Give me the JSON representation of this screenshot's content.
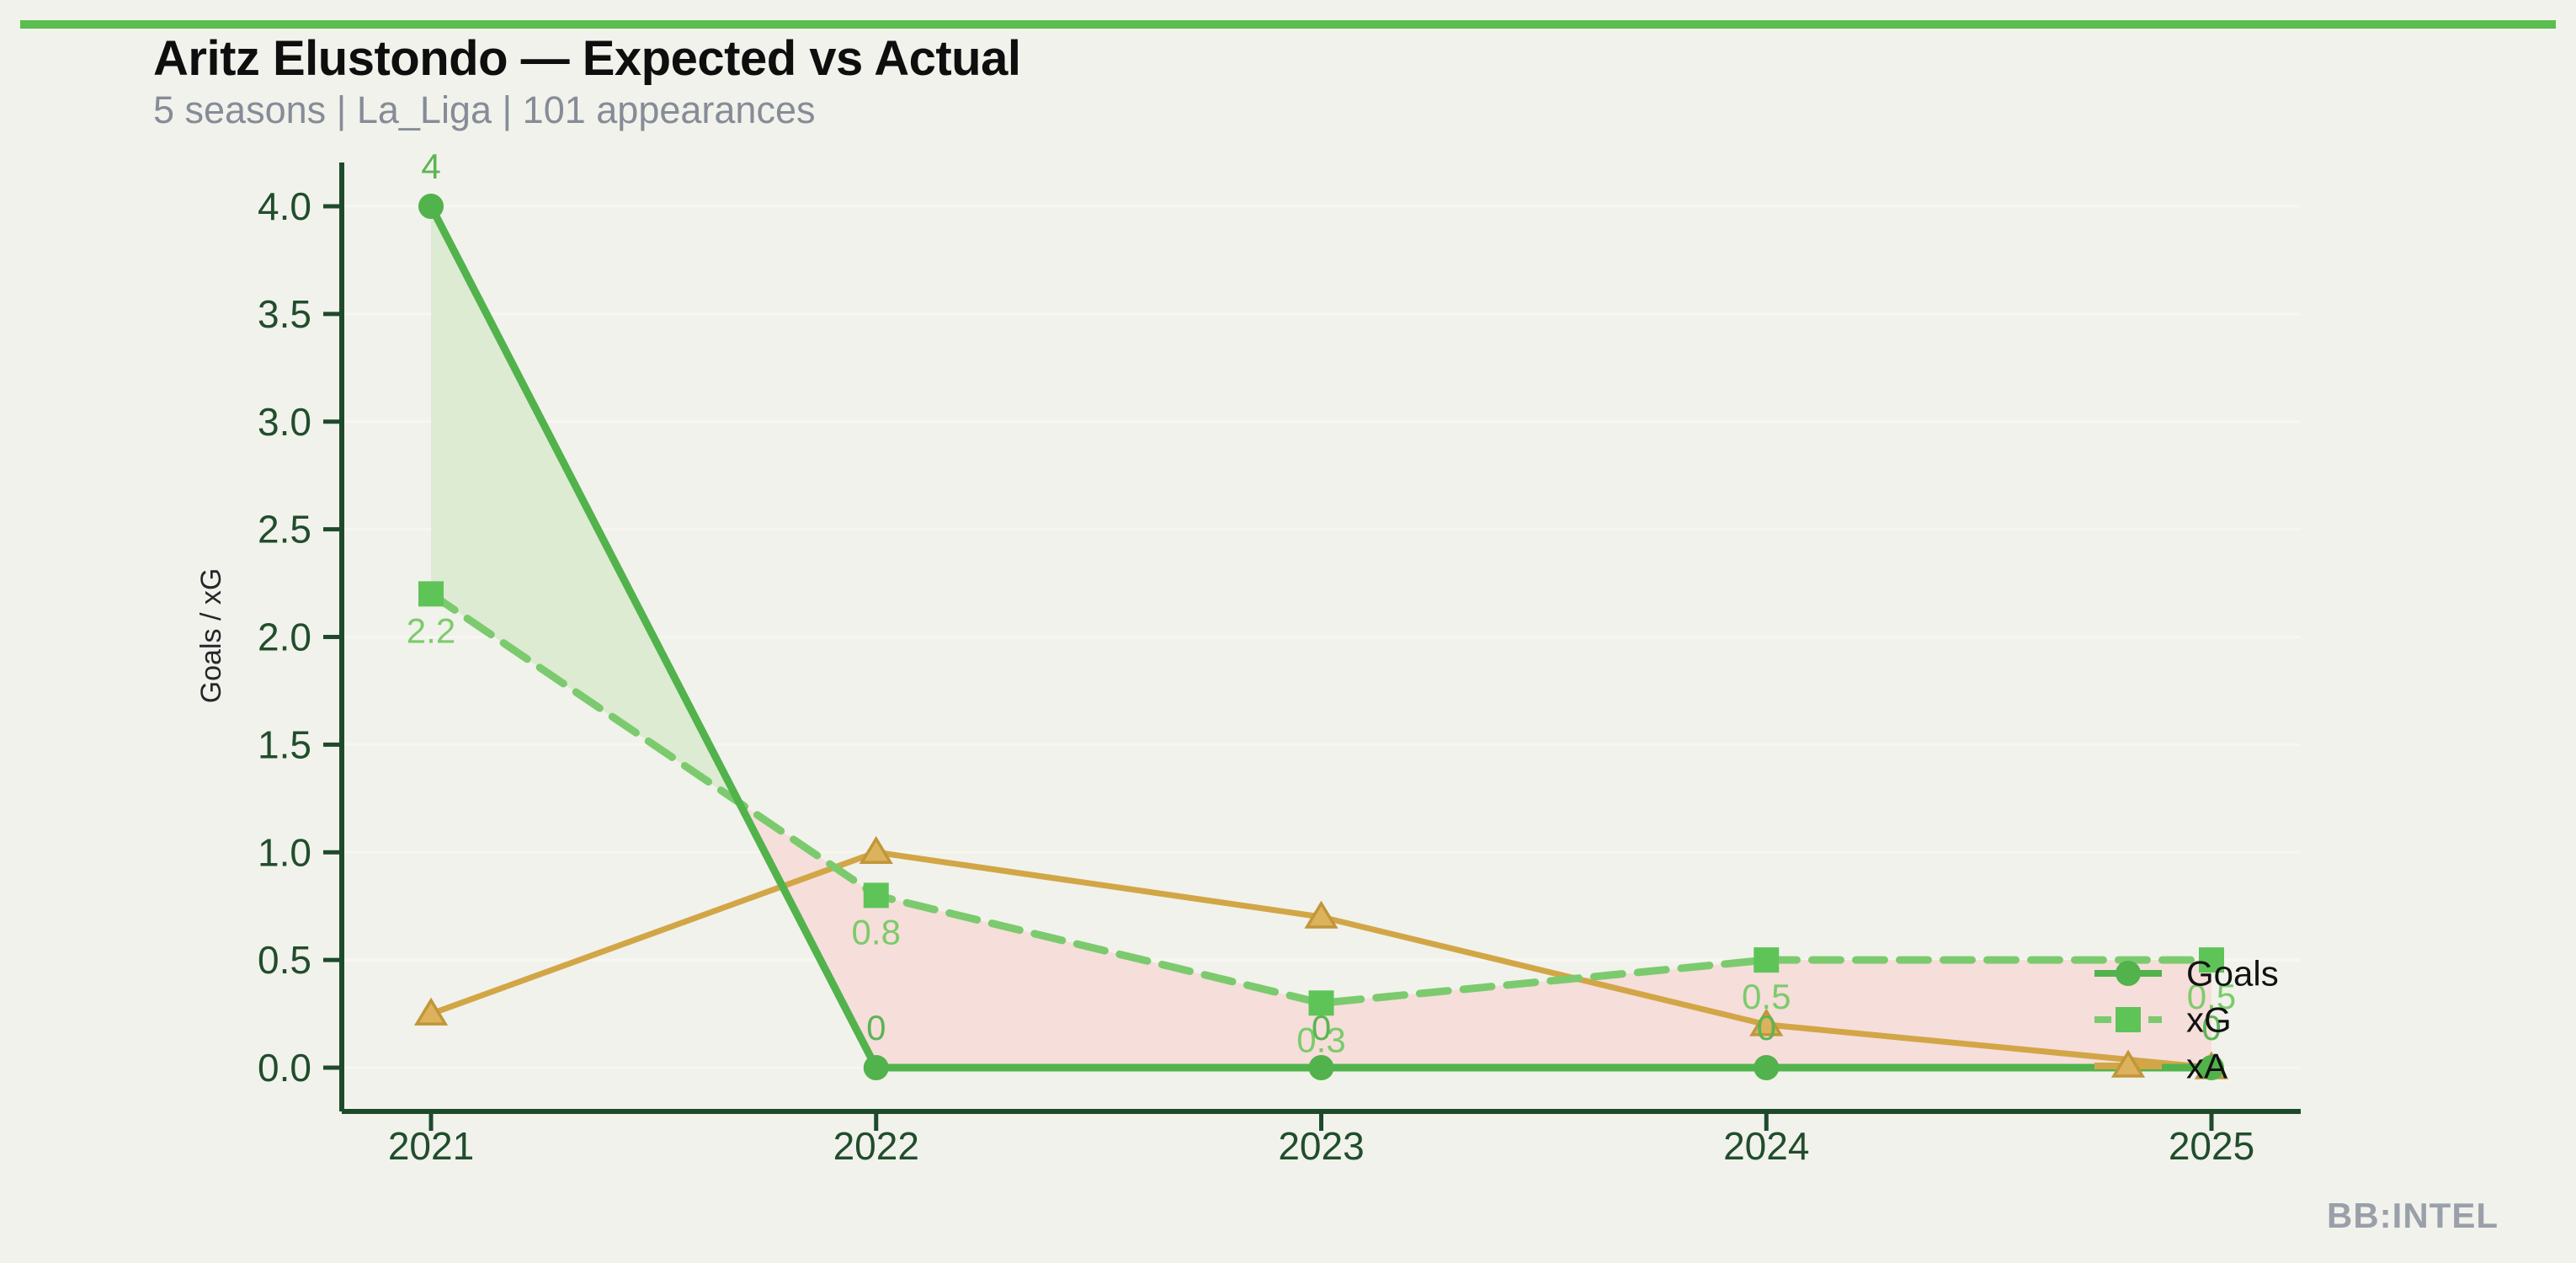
{
  "header": {
    "title": "Aritz Elustondo — Expected vs Actual",
    "subtitle": "5 seasons | La_Liga | 101 appearances"
  },
  "footer": {
    "watermark": "BB:INTEL"
  },
  "colors": {
    "background": "#f1f2eb",
    "accent_bar": "#5bbd4f",
    "title": "#0e0e0f",
    "subtitle": "#868c97",
    "axis": "#1e4a2c",
    "tick_label": "#214d2c",
    "grid": "#f6f7f0",
    "y_axis_label": "#26262b",
    "legend_text": "#121212",
    "fill_overperform": "#dcebd2",
    "fill_underperform": "#f6dedb",
    "watermark": "#9aa0aa"
  },
  "chart_data": {
    "type": "line",
    "title": "Aritz Elustondo — Expected vs Actual",
    "x": [
      2021,
      2022,
      2023,
      2024,
      2025
    ],
    "xlabel": "",
    "ylabel": "Goals / xG",
    "yticks": [
      "0.0",
      "0.5",
      "1.0",
      "1.5",
      "2.0",
      "2.5",
      "3.0",
      "3.5",
      "4.0"
    ],
    "ylim": [
      -0.2,
      4.2
    ],
    "grid": true,
    "legend_position": "center-right",
    "series": [
      {
        "name": "Goals",
        "values": [
          4,
          0,
          0,
          0,
          0
        ],
        "labels": [
          "4",
          "0",
          "0",
          "0",
          "0"
        ],
        "label_side": "above",
        "marker": "circle",
        "line_style": "solid",
        "color": "#52b24c",
        "marker_fill": "#52b24c",
        "marker_stroke": "",
        "label_color": "#5cb554"
      },
      {
        "name": "xG",
        "values": [
          2.2,
          0.8,
          0.3,
          0.5,
          0.5
        ],
        "labels": [
          "2.2",
          "0.8",
          "0.3",
          "0.5",
          "0.5"
        ],
        "label_side": "below",
        "marker": "square",
        "line_style": "dashed",
        "color": "#7cca6e",
        "marker_fill": "#5ec458",
        "marker_stroke": "",
        "label_color": "#7ccb6b"
      },
      {
        "name": "xA",
        "values": [
          0.25,
          1.0,
          0.7,
          0.2,
          0.0
        ],
        "labels": [],
        "label_side": "none",
        "marker": "triangle",
        "line_style": "solid",
        "color": "#d2a646",
        "marker_fill": "#dcb25c",
        "marker_stroke": "#c1963a",
        "label_color": ""
      }
    ],
    "fill_between": {
      "upper": "Goals",
      "lower": "xG",
      "positive_color_key": "fill_overperform",
      "negative_color_key": "fill_underperform"
    }
  }
}
